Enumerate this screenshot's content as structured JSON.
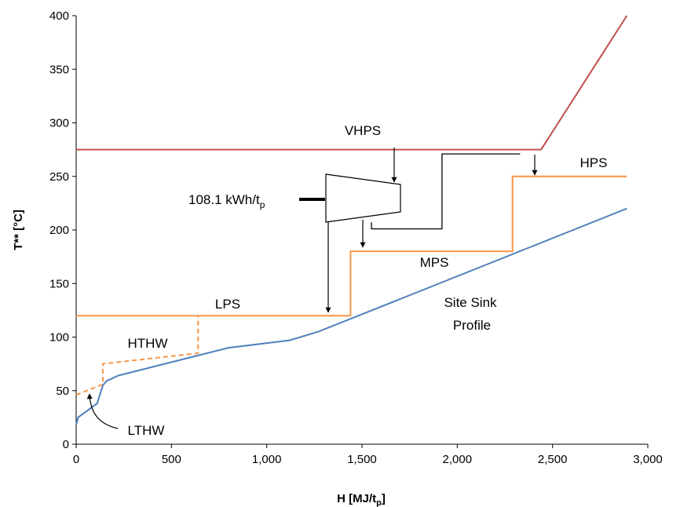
{
  "chart_data": {
    "type": "line",
    "xlabel": "H [MJ/t",
    "xlabel_sub": "p",
    "xlabel_end": "]",
    "ylabel": "T** [°C]",
    "xlim": [
      0,
      3000
    ],
    "ylim": [
      0,
      400
    ],
    "x_ticks": [
      "0",
      "500",
      "1,000",
      "1,500",
      "2,000",
      "2,500",
      "3,000"
    ],
    "y_ticks": [
      "0",
      "50",
      "100",
      "150",
      "200",
      "250",
      "300",
      "350",
      "400"
    ],
    "grid": false,
    "legend": "none",
    "series": [
      {
        "key": "vhps",
        "color": "#C0504D",
        "style": "solid",
        "points": [
          [
            0,
            275
          ],
          [
            2440,
            275
          ],
          [
            2890,
            400
          ]
        ]
      },
      {
        "key": "steam_mains",
        "color": "#F79646",
        "style": "solid",
        "points": [
          [
            0,
            120
          ],
          [
            1440,
            120
          ],
          [
            1440,
            180
          ],
          [
            2290,
            180
          ],
          [
            2290,
            250
          ],
          [
            2890,
            250
          ]
        ]
      },
      {
        "key": "lthw_hthw",
        "color": "#F79646",
        "style": "dashed",
        "points": [
          [
            0,
            46
          ],
          [
            140,
            56
          ],
          [
            140,
            75
          ],
          [
            640,
            85
          ],
          [
            640,
            120
          ]
        ]
      },
      {
        "key": "sink",
        "color": "#4F81BD",
        "style": "solid",
        "points": [
          [
            0,
            18
          ],
          [
            10,
            25
          ],
          [
            110,
            38
          ],
          [
            140,
            55
          ],
          [
            160,
            59
          ],
          [
            220,
            64
          ],
          [
            800,
            90
          ],
          [
            1120,
            97
          ],
          [
            1270,
            105
          ],
          [
            2890,
            220
          ]
        ]
      },
      {
        "key": "turbine_flow",
        "color": "#000000",
        "style": "solid",
        "points": [
          [
            1550,
            207
          ],
          [
            1550,
            201
          ],
          [
            1920,
            201
          ],
          [
            1920,
            271
          ],
          [
            2330,
            271
          ]
        ]
      }
    ],
    "annotations": {
      "vhps": "VHPS",
      "hps": "HPS",
      "mps": "MPS",
      "lps": "LPS",
      "hthw": "HTHW",
      "lthw": "LTHW",
      "sink_line1": "Site Sink",
      "sink_line2": "Profile",
      "power": "108.1 kWh/t",
      "power_sub": "p"
    }
  }
}
